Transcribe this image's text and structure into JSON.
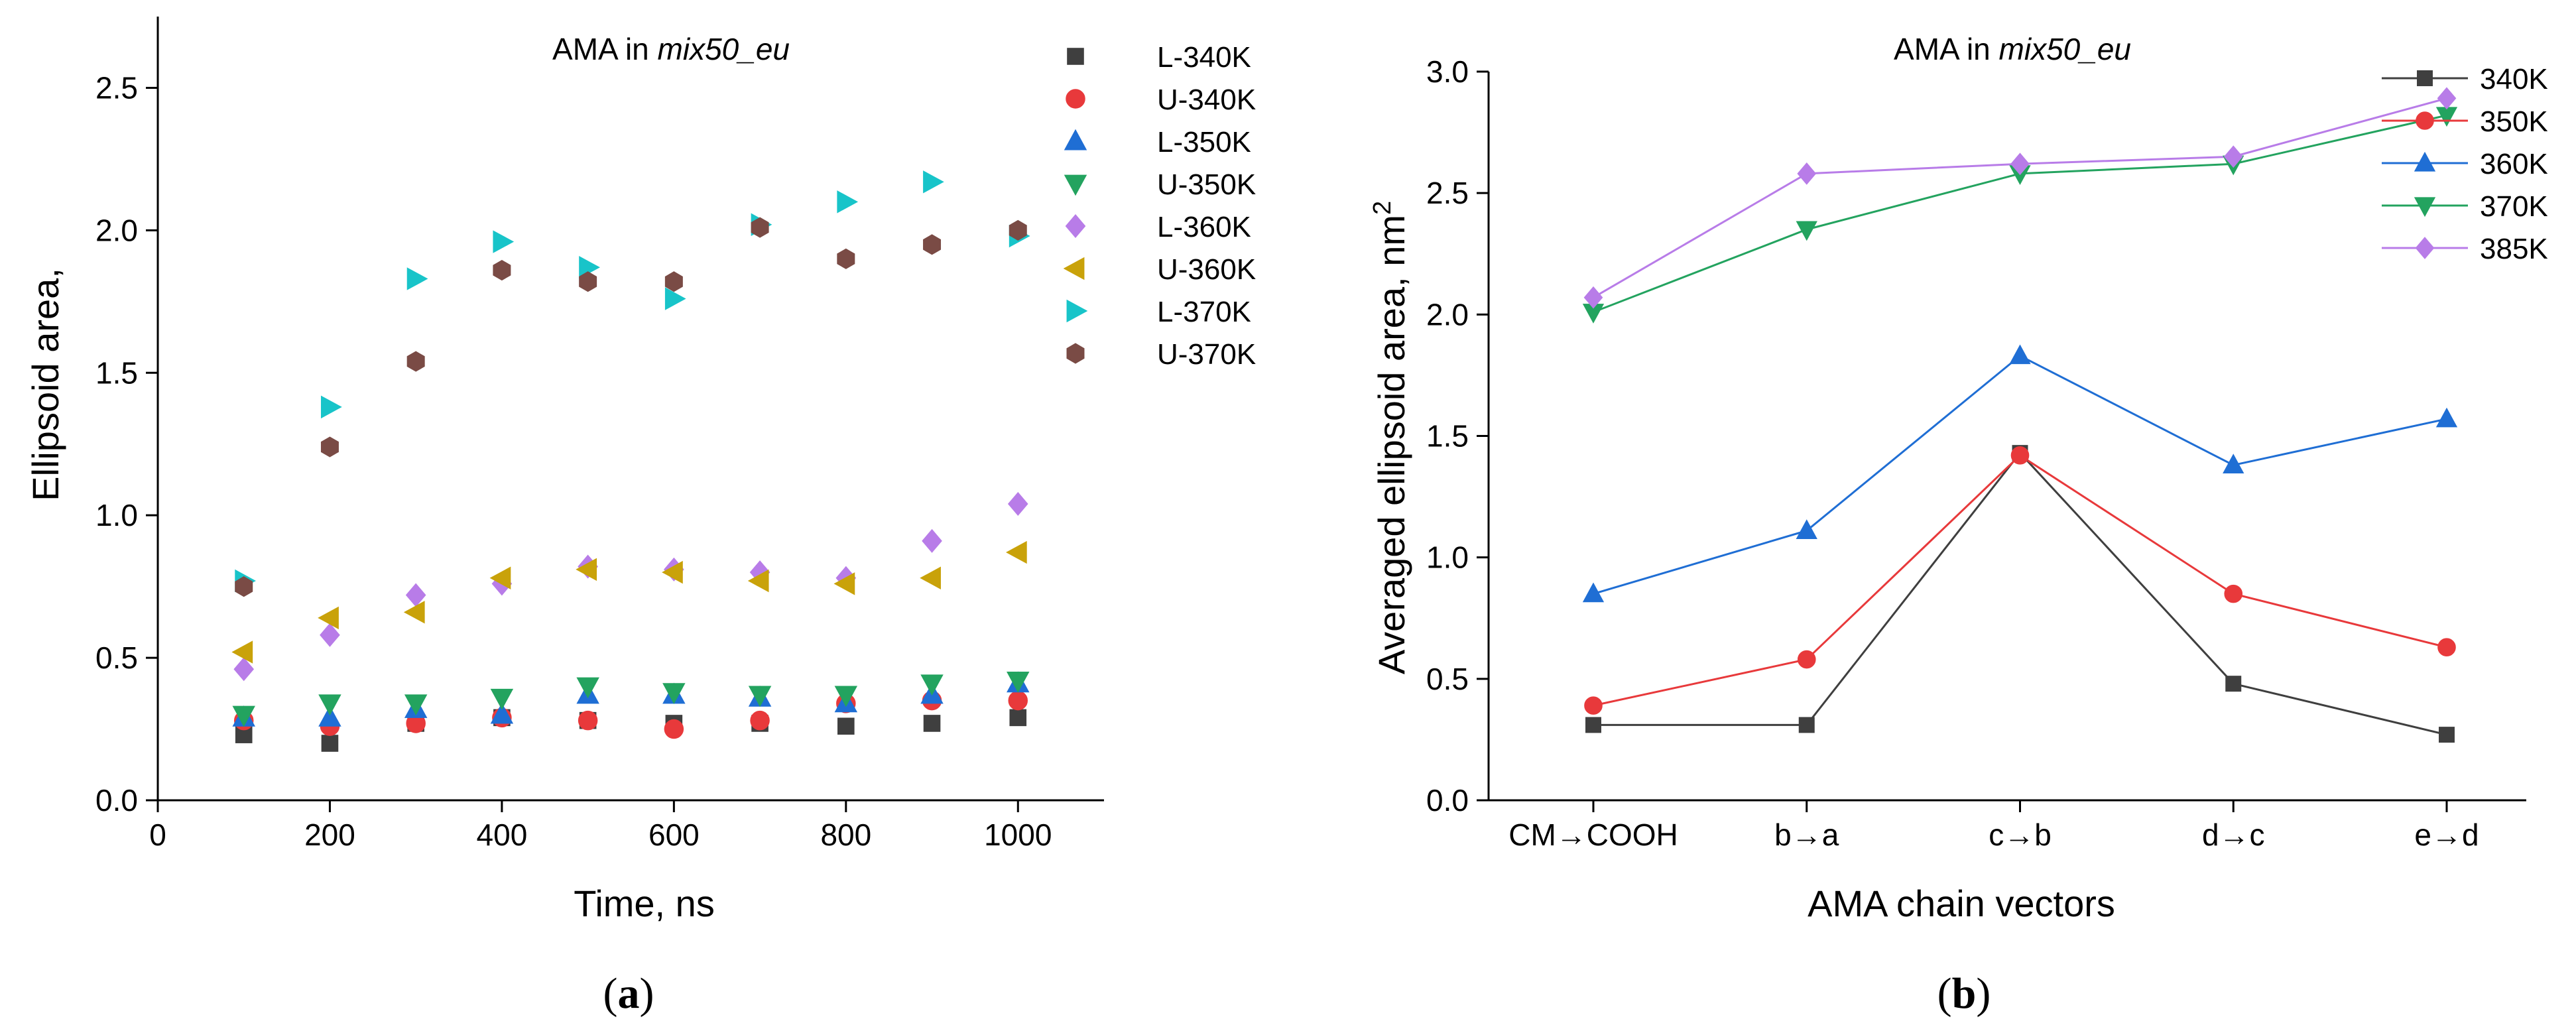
{
  "chart_data": [
    {
      "type": "scatter",
      "panel_label": "(a)",
      "title_prefix": "AMA in ",
      "title_italic": "mix50_eu",
      "xlabel": "Time, ns",
      "ylabel": "Ellipsoid area,",
      "xlim": [
        0,
        1100
      ],
      "ylim": [
        0,
        2.75
      ],
      "xticks": [
        "0",
        "200",
        "400",
        "600",
        "800",
        "1000"
      ],
      "yticks": [
        "0.0",
        "0.5",
        "1.0",
        "1.5",
        "2.0",
        "2.5"
      ],
      "grid": false,
      "legend_position": "top-right",
      "x": [
        100,
        200,
        300,
        400,
        500,
        600,
        700,
        800,
        900,
        1000
      ],
      "series": [
        {
          "name": "L-340K",
          "marker": "square",
          "color": "#3f3f3f",
          "values": [
            0.23,
            0.2,
            0.27,
            0.29,
            0.28,
            0.27,
            0.27,
            0.26,
            0.27,
            0.29
          ]
        },
        {
          "name": "U-340K",
          "marker": "circle",
          "color": "#e8393b",
          "values": [
            0.28,
            0.26,
            0.27,
            0.29,
            0.28,
            0.25,
            0.28,
            0.34,
            0.35,
            0.35
          ]
        },
        {
          "name": "L-350K",
          "marker": "triangle-up",
          "color": "#1f6ed4",
          "values": [
            0.29,
            0.29,
            0.32,
            0.3,
            0.37,
            0.37,
            0.36,
            0.34,
            0.37,
            0.41
          ]
        },
        {
          "name": "U-350K",
          "marker": "triangle-down",
          "color": "#23a35f",
          "values": [
            0.3,
            0.34,
            0.34,
            0.36,
            0.4,
            0.38,
            0.37,
            0.37,
            0.41,
            0.42
          ]
        },
        {
          "name": "L-360K",
          "marker": "diamond",
          "color": "#b87ce8",
          "values": [
            0.46,
            0.58,
            0.72,
            0.76,
            0.82,
            0.81,
            0.8,
            0.78,
            0.91,
            1.04
          ]
        },
        {
          "name": "U-360K",
          "marker": "triangle-left",
          "color": "#c9a20a",
          "values": [
            0.52,
            0.64,
            0.66,
            0.78,
            0.81,
            0.8,
            0.77,
            0.76,
            0.78,
            0.87
          ]
        },
        {
          "name": "L-370K",
          "marker": "triangle-right",
          "color": "#18c4c9",
          "values": [
            0.77,
            1.38,
            1.83,
            1.96,
            1.87,
            1.76,
            2.02,
            2.1,
            2.17,
            1.98
          ]
        },
        {
          "name": "U-370K",
          "marker": "hexagon",
          "color": "#7a4b45",
          "values": [
            0.75,
            1.24,
            1.54,
            1.86,
            1.82,
            1.82,
            2.01,
            1.9,
            1.95,
            2.0
          ]
        }
      ]
    },
    {
      "type": "line",
      "panel_label": "(b)",
      "title_prefix": "AMA in ",
      "title_italic": "mix50_eu",
      "xlabel": "AMA chain vectors",
      "ylabel": "Averaged ellipsoid area, nm",
      "ylabel_superscript": "2",
      "categories": [
        "CM→COOH",
        "b→a",
        "c→b",
        "d→c",
        "e→d"
      ],
      "ylim": [
        0,
        3.0
      ],
      "yticks": [
        "0.0",
        "0.5",
        "1.0",
        "1.5",
        "2.0",
        "2.5",
        "3.0"
      ],
      "grid": false,
      "legend_position": "top-right",
      "series": [
        {
          "name": "340K",
          "marker": "square",
          "color": "#3f3f3f",
          "values": [
            0.31,
            0.31,
            1.43,
            0.48,
            0.27
          ]
        },
        {
          "name": "350K",
          "marker": "circle",
          "color": "#e8393b",
          "values": [
            0.39,
            0.58,
            1.42,
            0.85,
            0.63
          ]
        },
        {
          "name": "360K",
          "marker": "triangle-up",
          "color": "#1f6ed4",
          "values": [
            0.85,
            1.11,
            1.83,
            1.38,
            1.57
          ]
        },
        {
          "name": "370K",
          "marker": "triangle-down",
          "color": "#23a35f",
          "values": [
            2.01,
            2.35,
            2.58,
            2.62,
            2.82
          ]
        },
        {
          "name": "385K",
          "marker": "diamond",
          "color": "#b87ce8",
          "values": [
            2.07,
            2.58,
            2.62,
            2.65,
            2.89
          ]
        }
      ]
    }
  ]
}
